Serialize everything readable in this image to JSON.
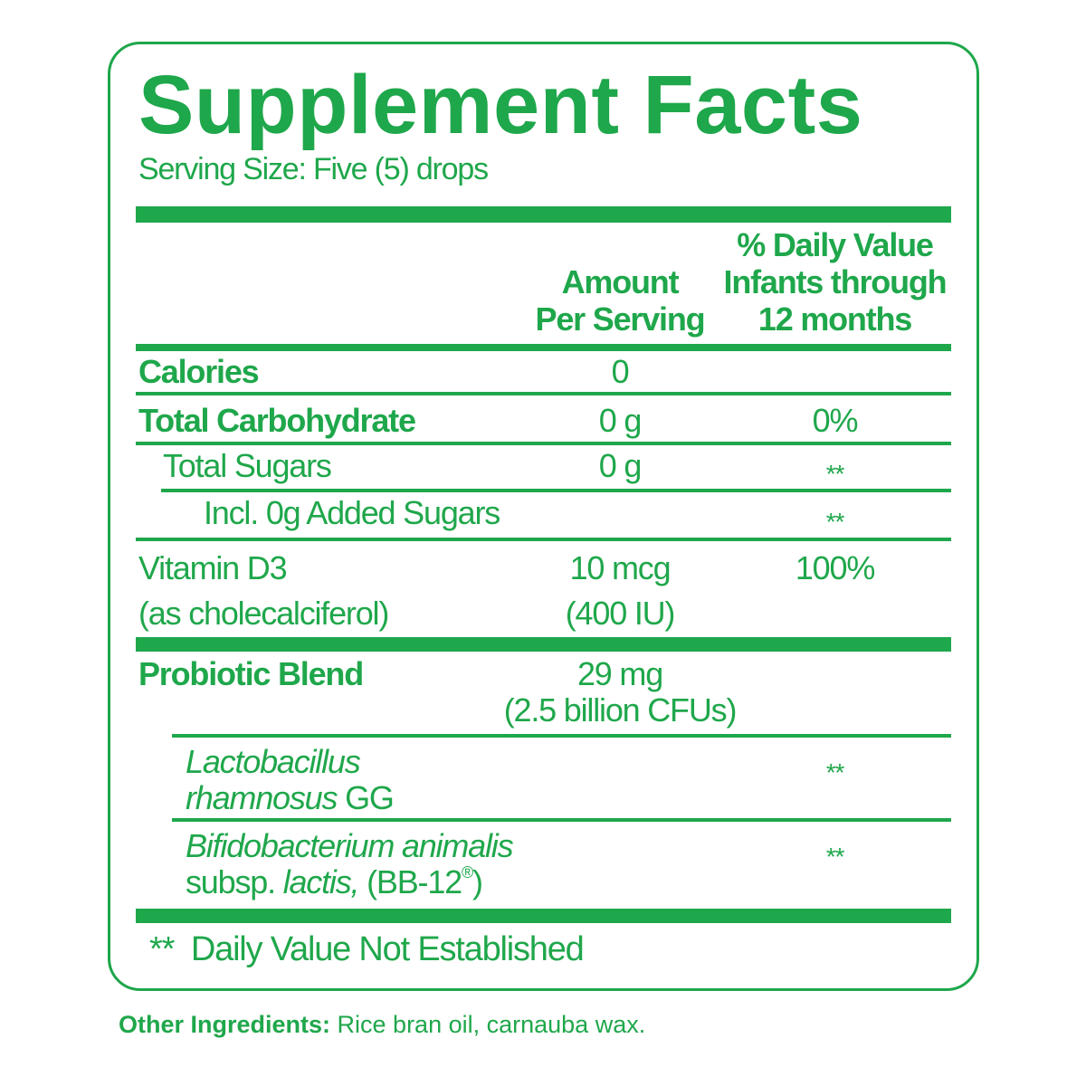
{
  "title": "Supplement Facts",
  "serving_size": "Serving Size: Five (5) drops",
  "headers": {
    "amount": [
      "Amount",
      "Per Serving"
    ],
    "dv": [
      "% Daily Value",
      "Infants through",
      "12 months"
    ]
  },
  "rows": [
    {
      "name": "Calories",
      "amount": "0",
      "dv": ""
    },
    {
      "name": "Total Carbohydrate",
      "amount": "0 g",
      "dv": "0%"
    },
    {
      "name": "Total Sugars",
      "amount": "0 g",
      "dv": "**"
    },
    {
      "name": "Incl. 0g Added Sugars",
      "amount": "",
      "dv": "**"
    },
    {
      "name": [
        "Vitamin D3",
        "(as cholecalciferol)"
      ],
      "amount": [
        "10 mcg",
        "(400 IU)"
      ],
      "dv": "100%"
    },
    {
      "name": "Probiotic Blend",
      "amount": [
        "29 mg",
        "(2.5 billion CFUs)"
      ],
      "dv": ""
    },
    {
      "name": [
        "Lactobacillus",
        "rhamnosus",
        "GG"
      ],
      "dv": "**"
    },
    {
      "name": [
        "Bifidobacterium animalis",
        "subsp.",
        "lactis,",
        "(BB-12",
        "®",
        ")"
      ],
      "dv": "**"
    }
  ],
  "footnote": "**  Daily Value Not Established",
  "other_ingredients": {
    "label": "Other Ingredients:",
    "value": " Rice bran oil, carnauba wax."
  },
  "colors": {
    "brand_green": "#1fa74b"
  }
}
